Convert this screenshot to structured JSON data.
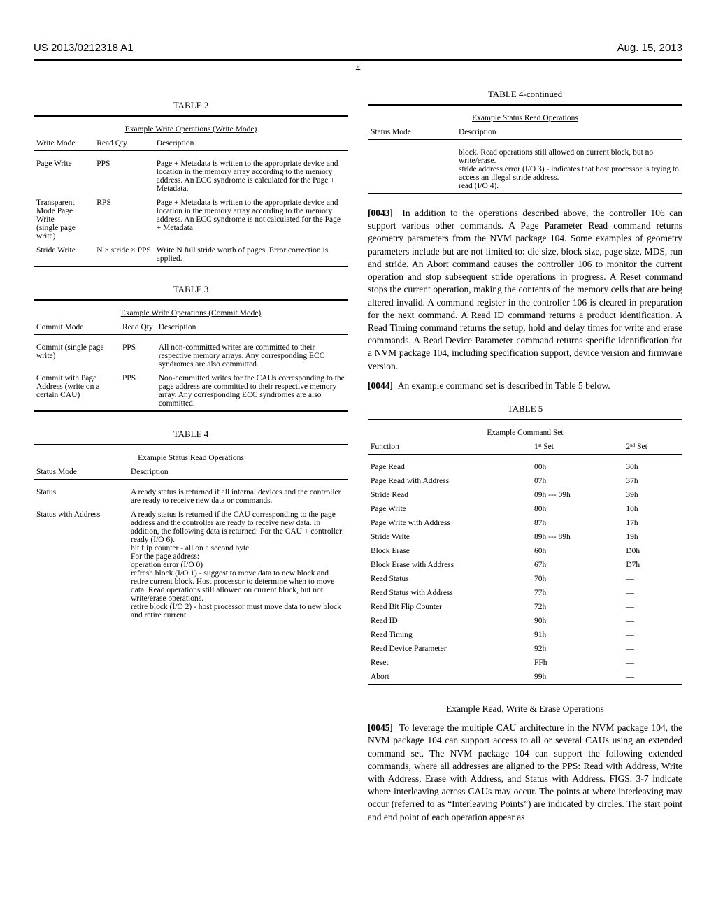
{
  "header": {
    "pub_no": "US 2013/0212318 A1",
    "date": "Aug. 15, 2013",
    "page": "4"
  },
  "table2": {
    "caption": "TABLE 2",
    "title": "Example Write Operations (Write Mode)",
    "cols": [
      "Write Mode",
      "Read Qty",
      "Description"
    ],
    "rows": [
      {
        "c0": "Page Write",
        "c1": "PPS",
        "c2": "Page + Metadata is written to the appropriate device and location in the memory array according to the memory address. An ECC syndrome is calculated for the Page + Metadata."
      },
      {
        "c0": "Transparent Mode Page Write\n(single page write)",
        "c1": "RPS",
        "c2": "Page + Metadata is written to the appropriate device and location in the memory array according to the memory address. An ECC syndrome is not calculated for the Page + Metadata"
      },
      {
        "c0": "Stride Write",
        "c1": "N × stride × PPS",
        "c2": "Write N full stride worth of pages. Error correction is applied."
      }
    ]
  },
  "table3": {
    "caption": "TABLE 3",
    "title": "Example Write Operations (Commit Mode)",
    "cols": [
      "Commit Mode",
      "Read Qty",
      "Description"
    ],
    "rows": [
      {
        "c0": "Commit (single page write)",
        "c1": "PPS",
        "c2": "All non-committed writes are committed to their respective memory arrays. Any corresponding ECC syndromes are also committed."
      },
      {
        "c0": "Commit with Page Address (write on a certain CAU)",
        "c1": "PPS",
        "c2": "Non-committed writes for the CAUs corresponding to the page address are committed to their respective memory array. Any corresponding ECC syndromes are also committed."
      }
    ]
  },
  "table4": {
    "caption": "TABLE 4",
    "title": "Example Status Read Operations",
    "cols": [
      "Status Mode",
      "Description"
    ],
    "rows": [
      {
        "c0": "Status",
        "c1": "A ready status is returned if all internal devices and the controller are ready to receive new data or commands."
      },
      {
        "c0": "Status with Address",
        "c1": "A ready status is returned if the CAU corresponding to the page address and the controller are ready to receive new data. In addition, the following data is returned: For the CAU + controller:\nready (I/O 6).\nbit flip counter - all on a second byte.\nFor the page address:\noperation error (I/O 0)\nrefresh block (I/O 1) - suggest to move data to new block and retire current block. Host processor to determine when to move data. Read operations still allowed on current block, but not write/erase operations.\nretire block (I/O 2) - host processor must move data to new block and retire current"
      }
    ]
  },
  "table4cont": {
    "caption": "TABLE 4-continued",
    "title": "Example Status Read Operations",
    "cols": [
      "Status Mode",
      "Description"
    ],
    "rows": [
      {
        "c0": "",
        "c1": "block. Read operations still allowed on current block, but no write/erase.\nstride address error (I/O 3) - indicates that host processor is trying to access an illegal stride address.\nread (I/O 4)."
      }
    ]
  },
  "para43": {
    "num": "[0043]",
    "text": "In addition to the operations described above, the controller 106 can support various other commands. A Page Parameter Read command returns geometry parameters from the NVM package 104. Some examples of geometry parameters include but are not limited to: die size, block size, page size, MDS, run and stride. An Abort command causes the controller 106 to monitor the current operation and stop subsequent stride operations in progress. A Reset command stops the current operation, making the contents of the memory cells that are being altered invalid. A command register in the controller 106 is cleared in preparation for the next command. A Read ID command returns a product identification. A Read Timing command returns the setup, hold and delay times for write and erase commands. A Read Device Parameter command returns specific identification for a NVM package 104, including specification support, device version and firmware version."
  },
  "para44": {
    "num": "[0044]",
    "text": "An example command set is described in Table 5 below."
  },
  "table5": {
    "caption": "TABLE 5",
    "title": "Example Command Set",
    "cols": [
      "Function",
      "1ˢᵗ Set",
      "2ⁿᵈ Set"
    ],
    "rows": [
      {
        "c0": "Page Read",
        "c1": "00h",
        "c2": "30h"
      },
      {
        "c0": "Page Read with Address",
        "c1": "07h",
        "c2": "37h"
      },
      {
        "c0": "Stride Read",
        "c1": "09h --- 09h",
        "c2": "39h"
      },
      {
        "c0": "Page Write",
        "c1": "80h",
        "c2": "10h"
      },
      {
        "c0": "Page Write with Address",
        "c1": "87h",
        "c2": "17h"
      },
      {
        "c0": "Stride Write",
        "c1": "89h --- 89h",
        "c2": "19h"
      },
      {
        "c0": "Block Erase",
        "c1": "60h",
        "c2": "D0h"
      },
      {
        "c0": "Block Erase with Address",
        "c1": "67h",
        "c2": "D7h"
      },
      {
        "c0": "Read Status",
        "c1": "70h",
        "c2": "—"
      },
      {
        "c0": "Read Status with Address",
        "c1": "77h",
        "c2": "—"
      },
      {
        "c0": "Read Bit Flip Counter",
        "c1": "72h",
        "c2": "—"
      },
      {
        "c0": "Read ID",
        "c1": "90h",
        "c2": "—"
      },
      {
        "c0": "Read Timing",
        "c1": "91h",
        "c2": "—"
      },
      {
        "c0": "Read Device Parameter",
        "c1": "92h",
        "c2": "—"
      },
      {
        "c0": "Reset",
        "c1": "FFh",
        "c2": "—"
      },
      {
        "c0": "Abort",
        "c1": "99h",
        "c2": "—"
      }
    ]
  },
  "section_head": "Example Read, Write & Erase Operations",
  "para45": {
    "num": "[0045]",
    "text": "To leverage the multiple CAU architecture in the NVM package 104, the NVM package 104 can support access to all or several CAUs using an extended command set. The NVM package 104 can support the following extended commands, where all addresses are aligned to the PPS: Read with Address, Write with Address, Erase with Address, and Status with Address. FIGS. 3-7 indicate where interleaving across CAUs may occur. The points at where interleaving may occur (referred to as “Interleaving Points”) are indicated by circles. The start point and end point of each operation appear as"
  }
}
